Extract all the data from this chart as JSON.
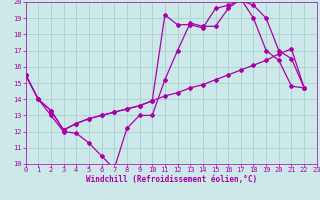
{
  "background_color": "#cce8e8",
  "grid_color": "#aad4d4",
  "line_color": "#aa00aa",
  "xlabel": "Windchill (Refroidissement éolien,°C)",
  "xlim": [
    0,
    23
  ],
  "ylim": [
    10,
    20
  ],
  "xticks": [
    0,
    1,
    2,
    3,
    4,
    5,
    6,
    7,
    8,
    9,
    10,
    11,
    12,
    13,
    14,
    15,
    16,
    17,
    18,
    19,
    20,
    21,
    22,
    23
  ],
  "yticks": [
    10,
    11,
    12,
    13,
    14,
    15,
    16,
    17,
    18,
    19,
    20
  ],
  "line1_x": [
    0,
    1,
    2,
    3,
    4,
    5,
    6,
    7,
    8,
    9,
    10,
    11,
    12,
    13,
    14,
    15,
    16,
    17,
    18,
    19,
    20,
    21,
    22
  ],
  "line1_y": [
    15.5,
    14.0,
    13.0,
    12.0,
    11.9,
    11.3,
    10.5,
    9.7,
    12.2,
    13.0,
    13.0,
    15.2,
    17.0,
    18.7,
    18.5,
    18.5,
    19.6,
    20.2,
    19.0,
    17.0,
    16.4,
    14.8,
    14.7
  ],
  "line2_x": [
    0,
    1,
    2,
    3,
    4,
    5,
    6,
    7,
    8,
    9,
    10,
    11,
    12,
    13,
    14,
    15,
    16,
    17,
    18,
    19,
    20,
    21,
    22
  ],
  "line2_y": [
    15.5,
    14.0,
    13.3,
    12.1,
    12.5,
    12.8,
    13.0,
    13.2,
    13.4,
    13.6,
    13.9,
    14.2,
    14.4,
    14.7,
    14.9,
    15.2,
    15.5,
    15.8,
    16.1,
    16.4,
    16.8,
    17.1,
    14.7
  ],
  "line3_x": [
    0,
    1,
    2,
    3,
    4,
    5,
    6,
    7,
    8,
    9,
    10,
    11,
    12,
    13,
    14,
    15,
    16,
    17,
    18,
    19,
    20,
    21,
    22
  ],
  "line3_y": [
    15.5,
    14.0,
    13.3,
    12.1,
    12.5,
    12.8,
    13.0,
    13.2,
    13.4,
    13.6,
    13.9,
    19.2,
    18.6,
    18.6,
    18.4,
    19.6,
    19.8,
    20.1,
    19.8,
    19.0,
    17.0,
    16.5,
    14.7
  ]
}
